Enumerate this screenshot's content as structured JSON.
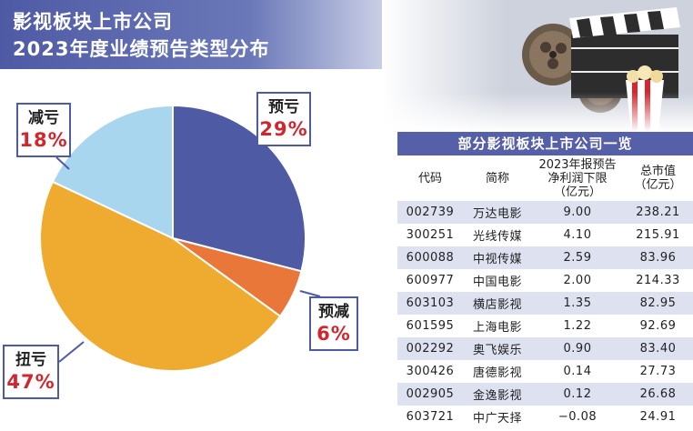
{
  "title": {
    "line1": "影视板块上市公司",
    "line2": "2023年度业绩预告类型分布"
  },
  "chart_data": {
    "type": "pie",
    "slices": [
      {
        "name": "预亏",
        "value": 29,
        "label": "29%",
        "color": "#4f5aa5"
      },
      {
        "name": "预减",
        "value": 6,
        "label": "6%",
        "color": "#e9773a"
      },
      {
        "name": "扭亏",
        "value": 47,
        "label": "47%",
        "color": "#eeab30"
      },
      {
        "name": "减亏",
        "value": 18,
        "label": "18%",
        "color": "#a8d6ee"
      }
    ]
  },
  "table": {
    "title": "部分影视板块上市公司一览",
    "headers": {
      "code": "代码",
      "name": "简称",
      "profit_line1": "2023年报预告",
      "profit_line2": "净利润下限",
      "profit_line3": "（亿元）",
      "cap_line1": "总市值",
      "cap_line2": "（亿元）"
    },
    "rows": [
      {
        "code": "002739",
        "name": "万达电影",
        "profit": "9.00",
        "cap": "238.21"
      },
      {
        "code": "300251",
        "name": "光线传媒",
        "profit": "4.10",
        "cap": "215.91"
      },
      {
        "code": "600088",
        "name": "中视传媒",
        "profit": "2.59",
        "cap": "83.96"
      },
      {
        "code": "600977",
        "name": "中国电影",
        "profit": "2.00",
        "cap": "214.33"
      },
      {
        "code": "603103",
        "name": "横店影视",
        "profit": "1.35",
        "cap": "82.95"
      },
      {
        "code": "601595",
        "name": "上海电影",
        "profit": "1.22",
        "cap": "92.69"
      },
      {
        "code": "002292",
        "name": "奥飞娱乐",
        "profit": "0.90",
        "cap": "83.40"
      },
      {
        "code": "300426",
        "name": "唐德影视",
        "profit": "0.14",
        "cap": "27.73"
      },
      {
        "code": "002905",
        "name": "金逸影视",
        "profit": "0.12",
        "cap": "26.68"
      },
      {
        "code": "603721",
        "name": "中广天择",
        "profit": "−0.08",
        "cap": "24.91"
      }
    ]
  }
}
